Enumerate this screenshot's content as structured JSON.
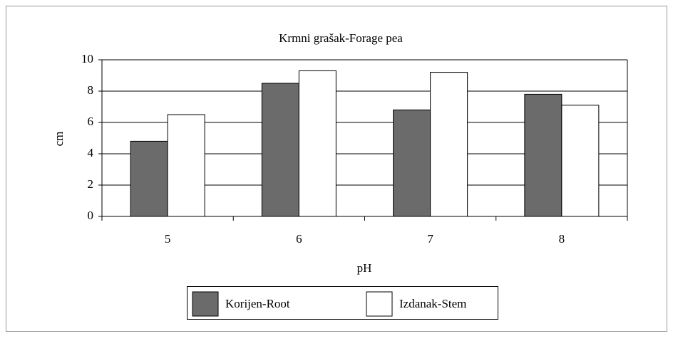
{
  "chart_data": {
    "type": "bar",
    "title": "Krmni grašak-Forage pea",
    "x_label": "pH",
    "y_label": "cm",
    "categories": [
      "5",
      "6",
      "7",
      "8"
    ],
    "series": [
      {
        "name": "Korijen-Root",
        "color": "#6b6b6b",
        "values": [
          4.8,
          8.5,
          6.8,
          7.8
        ]
      },
      {
        "name": "Izdanak-Stem",
        "color": "#ffffff",
        "values": [
          6.5,
          9.3,
          9.2,
          7.1
        ]
      }
    ],
    "ylim": [
      0,
      10
    ],
    "yticks": [
      0,
      2,
      4,
      6,
      8,
      10
    ],
    "grid": true,
    "legend": "bottom"
  }
}
